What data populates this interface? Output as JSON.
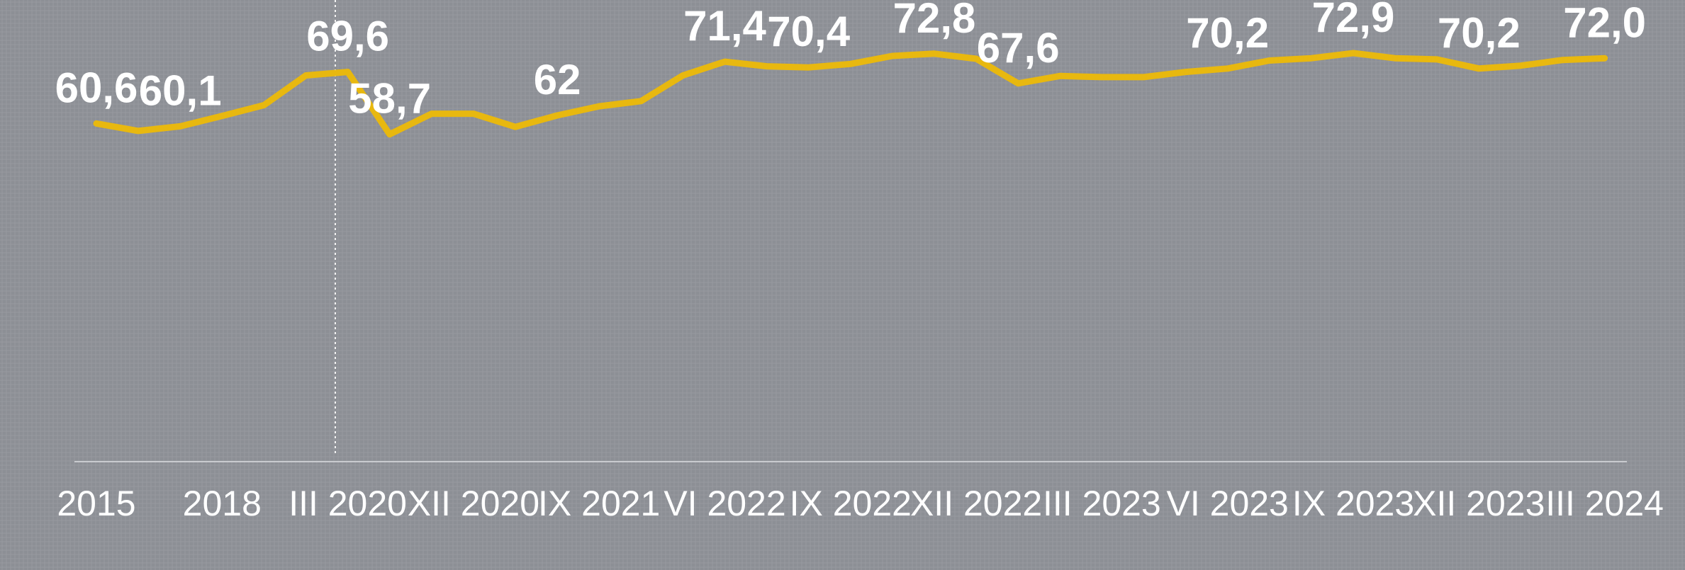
{
  "chart_data": {
    "type": "line",
    "categories": [
      "2015",
      null,
      null,
      "2018",
      null,
      null,
      "III 2020",
      null,
      null,
      "XII 2020",
      null,
      null,
      "IX 2021",
      null,
      null,
      "VI 2022",
      null,
      null,
      "IX 2022",
      null,
      null,
      "XII 2022",
      null,
      null,
      "III 2023",
      null,
      null,
      "VI 2023",
      null,
      null,
      "IX 2023",
      null,
      null,
      "XII 2023",
      null,
      null,
      "III 2024"
    ],
    "series": [
      {
        "color": "#e8b80f",
        "values": [
          60.6,
          59.3,
          60.1,
          61.9,
          63.8,
          69.0,
          69.6,
          58.7,
          62.3,
          62.3,
          60.0,
          62,
          63.6,
          64.5,
          69.0,
          71.4,
          70.6,
          70.4,
          71.0,
          72.4,
          72.8,
          71.9,
          67.6,
          68.9,
          68.7,
          68.7,
          69.6,
          70.2,
          71.6,
          72.0,
          72.9,
          72.0,
          71.8,
          70.2,
          70.7,
          71.7,
          72.0
        ],
        "value_labels": [
          "60,6",
          null,
          "60,1",
          null,
          null,
          null,
          "69,6",
          "58,7",
          null,
          null,
          null,
          "62",
          null,
          null,
          null,
          "71,4",
          null,
          "70,4",
          null,
          null,
          "72,8",
          null,
          "67,6",
          null,
          null,
          null,
          null,
          "70,2",
          null,
          null,
          "72,9",
          null,
          null,
          "70,2",
          null,
          null,
          "72,0"
        ]
      }
    ],
    "ylim": [
      0,
      80
    ]
  }
}
